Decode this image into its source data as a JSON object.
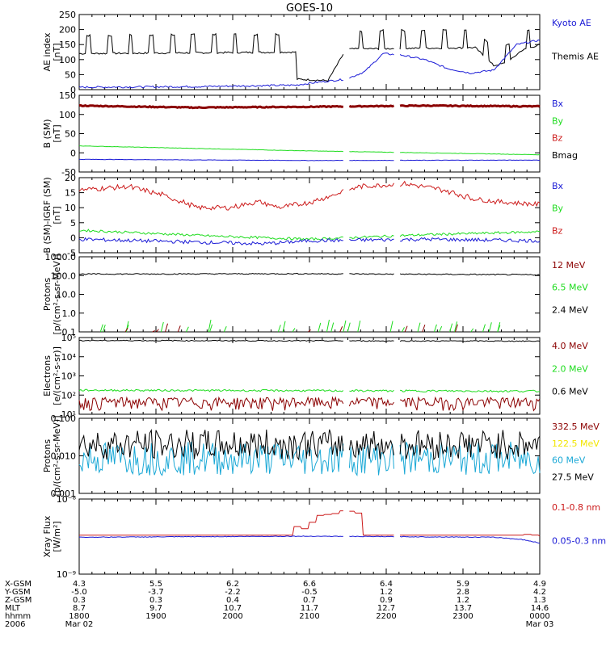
{
  "title": "GOES-10",
  "colors": {
    "black": "#000000",
    "blue": "#1a1ad6",
    "red": "#cc1a1a",
    "darkred": "#8b0000",
    "green": "#1edc1e",
    "cyan": "#1aa8d6",
    "yellow": "#f2e600"
  },
  "x_axis": {
    "row_labels": [
      "X-GSM",
      "Y-GSM",
      "Z-GSM",
      "MLT",
      "hhmm",
      "2006"
    ],
    "columns": [
      {
        "rows": [
          "4.3",
          "-5.0",
          "0.3",
          "8.7",
          "1800",
          "Mar 02"
        ]
      },
      {
        "rows": [
          "5.5",
          "-3.7",
          "0.3",
          "9.7",
          "1900",
          ""
        ]
      },
      {
        "rows": [
          "6.2",
          "-2.2",
          "0.4",
          "10.7",
          "2000",
          ""
        ]
      },
      {
        "rows": [
          "6.6",
          "-0.5",
          "0.7",
          "11.7",
          "2100",
          ""
        ]
      },
      {
        "rows": [
          "6.4",
          "1.2",
          "0.9",
          "12.7",
          "2200",
          ""
        ]
      },
      {
        "rows": [
          "5.9",
          "2.8",
          "1.2",
          "13.7",
          "2300",
          ""
        ]
      },
      {
        "rows": [
          "4.9",
          "4.2",
          "1.3",
          "14.6",
          "0000",
          "Mar 03"
        ]
      }
    ]
  },
  "chart_data": [
    {
      "type": "line",
      "ylabel": "AE index\n[nT]",
      "ylim": [
        0,
        250
      ],
      "log": false,
      "ticks": [
        "0",
        "50",
        "100",
        "150",
        "200",
        "250"
      ],
      "legend": [
        {
          "name": "Kyoto AE",
          "color": "#1a1ad6"
        },
        {
          "name": "Themis AE",
          "color": "#000000"
        }
      ],
      "series": [
        {
          "name": "Themis AE",
          "color": "#000000",
          "kind": "spiky",
          "base": [
            [
              0,
              120
            ],
            [
              0.47,
              125
            ],
            [
              0.47,
              35
            ],
            [
              0.54,
              30
            ],
            [
              0.58,
              135
            ],
            [
              0.86,
              140
            ],
            [
              0.9,
              80
            ],
            [
              0.93,
              90
            ],
            [
              0.96,
              130
            ],
            [
              1.0,
              150
            ]
          ],
          "spikes": {
            "n": 22,
            "amp": 60
          }
        },
        {
          "name": "Kyoto AE",
          "color": "#1a1ad6",
          "kind": "noisy",
          "amp": 3,
          "pts": [
            [
              0,
              8
            ],
            [
              0.25,
              10
            ],
            [
              0.47,
              15
            ],
            [
              0.52,
              25
            ],
            [
              0.58,
              35
            ],
            [
              0.62,
              60
            ],
            [
              0.66,
              120
            ],
            [
              0.7,
              115
            ],
            [
              0.75,
              100
            ],
            [
              0.8,
              70
            ],
            [
              0.85,
              55
            ],
            [
              0.9,
              65
            ],
            [
              0.95,
              150
            ],
            [
              1.0,
              165
            ]
          ]
        }
      ]
    },
    {
      "type": "line",
      "ylabel": "B (SM)\n[nT]",
      "ylim": [
        -50,
        150
      ],
      "log": false,
      "ticks": [
        "-50",
        "0",
        "50",
        "100",
        "150"
      ],
      "legend": [
        {
          "name": "Bx",
          "color": "#1a1ad6"
        },
        {
          "name": "By",
          "color": "#1edc1e"
        },
        {
          "name": "Bz",
          "color": "#cc1a1a"
        },
        {
          "name": "Bmag",
          "color": "#000000"
        }
      ],
      "series": [
        {
          "name": "Bz",
          "color": "#8b0000",
          "kind": "noisy",
          "amp": 1.2,
          "thick": 3,
          "pts": [
            [
              0,
              123
            ],
            [
              0.25,
              118
            ],
            [
              0.5,
              120
            ],
            [
              0.75,
              123
            ],
            [
              1.0,
              121
            ]
          ]
        },
        {
          "name": "By",
          "color": "#1edc1e",
          "kind": "noisy",
          "amp": 0.5,
          "pts": [
            [
              0,
              18
            ],
            [
              0.5,
              5
            ],
            [
              0.75,
              0
            ],
            [
              1.0,
              -5
            ]
          ]
        },
        {
          "name": "Bx",
          "color": "#1a1ad6",
          "kind": "noisy",
          "amp": 0.5,
          "pts": [
            [
              0,
              -17
            ],
            [
              0.5,
              -20
            ],
            [
              1.0,
              -19
            ]
          ]
        }
      ]
    },
    {
      "type": "line",
      "ylabel": "B (SM)-IGRF (SM)\n[nT]",
      "ylim": [
        -5,
        20
      ],
      "log": false,
      "ticks": [
        "-5",
        "0",
        "5",
        "10",
        "15",
        "20"
      ],
      "legend": [
        {
          "name": "Bx",
          "color": "#1a1ad6"
        },
        {
          "name": "By",
          "color": "#1edc1e"
        },
        {
          "name": "Bz",
          "color": "#cc1a1a"
        }
      ],
      "series": [
        {
          "name": "Bz",
          "color": "#cc1a1a",
          "kind": "step",
          "amp": 0.8,
          "pts": [
            [
              0,
              16
            ],
            [
              0.1,
              17
            ],
            [
              0.18,
              14
            ],
            [
              0.25,
              10
            ],
            [
              0.32,
              10
            ],
            [
              0.38,
              12
            ],
            [
              0.43,
              10
            ],
            [
              0.5,
              12
            ],
            [
              0.56,
              15
            ],
            [
              0.6,
              17
            ],
            [
              0.7,
              18
            ],
            [
              0.78,
              16
            ],
            [
              0.85,
              13
            ],
            [
              0.9,
              12
            ],
            [
              1.0,
              11
            ]
          ]
        },
        {
          "name": "By",
          "color": "#1edc1e",
          "kind": "noisy",
          "amp": 0.4,
          "pts": [
            [
              0,
              2.5
            ],
            [
              0.3,
              0.5
            ],
            [
              0.5,
              -0.5
            ],
            [
              0.75,
              1
            ],
            [
              1.0,
              2
            ]
          ]
        },
        {
          "name": "Bx",
          "color": "#1a1ad6",
          "kind": "noisy",
          "amp": 0.6,
          "pts": [
            [
              0,
              -0.5
            ],
            [
              0.4,
              -2
            ],
            [
              0.5,
              -1
            ],
            [
              0.75,
              -0.5
            ],
            [
              1.0,
              -1
            ]
          ]
        }
      ]
    },
    {
      "type": "line",
      "ylabel": "Protons\n[p/(cm²-s-sr-MeV)]",
      "ylim": [
        0.1,
        1000
      ],
      "log": true,
      "ticks": [
        "0.1",
        "1.0",
        "10.0",
        "100.0",
        "1000.0"
      ],
      "legend": [
        {
          "name": "12 MeV",
          "color": "#8b0000"
        },
        {
          "name": "6.5 MeV",
          "color": "#1edc1e"
        },
        {
          "name": "2.4 MeV",
          "color": "#000000"
        }
      ],
      "series": [
        {
          "name": "2.4 MeV",
          "color": "#000000",
          "kind": "noisy",
          "amp": 8,
          "pts": [
            [
              0,
              120
            ],
            [
              0.5,
              125
            ],
            [
              1.0,
              110
            ]
          ]
        },
        {
          "name": "6.5 MeV",
          "color": "#1edc1e",
          "kind": "floor",
          "n": 30,
          "top": 0.3
        },
        {
          "name": "12 MeV",
          "color": "#8b0000",
          "kind": "floor",
          "n": 10,
          "top": 0.2
        }
      ]
    },
    {
      "type": "line",
      "ylabel": "Electrons\n[e/(cm²-s-sr)]",
      "ylim": [
        10,
        100000
      ],
      "log": true,
      "ticks": [
        "10¹",
        "10²",
        "10³",
        "10⁴",
        "10⁵"
      ],
      "legend": [
        {
          "name": "4.0 MeV",
          "color": "#8b0000"
        },
        {
          "name": "2.0 MeV",
          "color": "#1edc1e"
        },
        {
          "name": "0.6 MeV",
          "color": "#000000"
        }
      ],
      "series": [
        {
          "name": "0.6 MeV",
          "color": "#000000",
          "kind": "noisy",
          "amp": 4000,
          "pts": [
            [
              0,
              70000
            ],
            [
              1.0,
              65000
            ]
          ]
        },
        {
          "name": "2.0 MeV",
          "color": "#1edc1e",
          "kind": "noisy",
          "amp": 20,
          "pts": [
            [
              0,
              180
            ],
            [
              0.5,
              170
            ],
            [
              1.0,
              160
            ]
          ]
        },
        {
          "name": "4.0 MeV",
          "color": "#8b0000",
          "kind": "noisy",
          "amp": 30,
          "pts": [
            [
              0,
              45
            ],
            [
              1.0,
              45
            ]
          ]
        }
      ]
    },
    {
      "type": "line",
      "ylabel": "Protons\n[p/(cm²-s-sr-MeV)]",
      "ylim": [
        0.001,
        0.1
      ],
      "log": true,
      "ticks": [
        "0.001",
        "0.010",
        "0.100"
      ],
      "legend": [
        {
          "name": "332.5 MeV",
          "color": "#8b0000"
        },
        {
          "name": "122.5 MeV",
          "color": "#f2e600"
        },
        {
          "name": "60 MeV",
          "color": "#1aa8d6"
        },
        {
          "name": "27.5 MeV",
          "color": "#000000"
        }
      ],
      "series": [
        {
          "name": "60 MeV",
          "color": "#1aa8d6",
          "kind": "lognoise",
          "center": 0.0085,
          "spread": 0.45
        },
        {
          "name": "27.5 MeV",
          "color": "#000000",
          "kind": "lognoise",
          "center": 0.02,
          "spread": 0.4
        }
      ]
    },
    {
      "type": "line",
      "ylabel": "Xray Flux\n[W/m²]",
      "ylim": [
        1e-09,
        1e-08
      ],
      "log": true,
      "ticks": [
        "10⁻⁹",
        "10⁻⁸"
      ],
      "legend": [
        {
          "name": "0.1-0.8 nm",
          "color": "#cc1a1a"
        },
        {
          "name": "0.05-0.3 nm",
          "color": "#1a1ad6"
        }
      ],
      "series": [
        {
          "name": "0.1-0.8 nm",
          "color": "#cc1a1a",
          "kind": "step",
          "amp": 0.0,
          "pts": [
            [
              0,
              3.3e-09
            ],
            [
              0.45,
              3.3e-09
            ],
            [
              0.47,
              4.5e-09
            ],
            [
              0.49,
              3.8e-09
            ],
            [
              0.51,
              6e-09
            ],
            [
              0.56,
              6.5e-09
            ],
            [
              0.57,
              7.2e-09
            ],
            [
              0.6,
              6.5e-09
            ],
            [
              0.6,
              3.3e-09
            ],
            [
              0.95,
              3.3e-09
            ],
            [
              0.97,
              3.4e-09
            ],
            [
              1.0,
              3.2e-09
            ]
          ]
        },
        {
          "name": "0.05-0.3 nm",
          "color": "#1a1ad6",
          "kind": "noisy",
          "amp": 3e-11,
          "pts": [
            [
              0,
              3.1e-09
            ],
            [
              0.5,
              3.2e-09
            ],
            [
              0.9,
              3.1e-09
            ],
            [
              0.96,
              2.9e-09
            ],
            [
              1.0,
              2.6e-09
            ]
          ]
        }
      ]
    }
  ]
}
